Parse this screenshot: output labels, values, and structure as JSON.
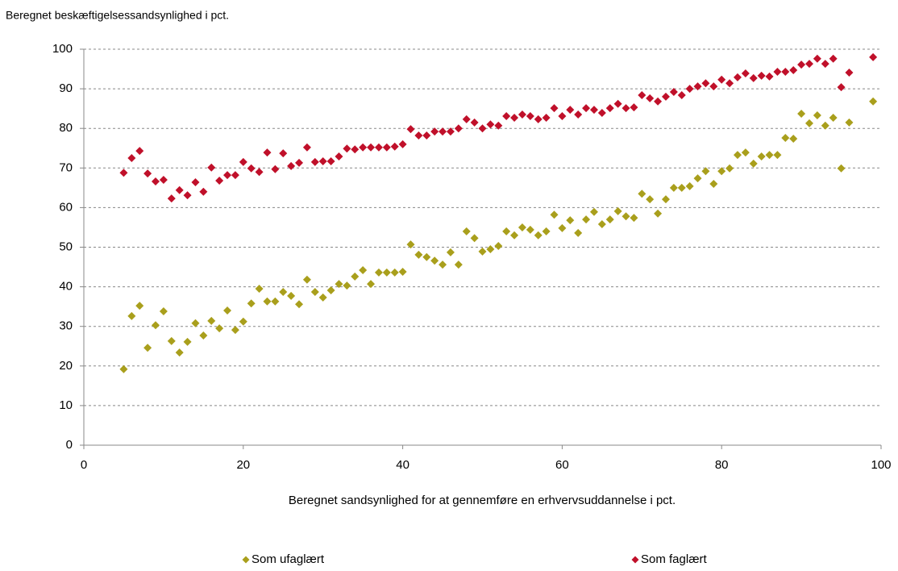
{
  "chart_data": {
    "type": "scatter",
    "title": "Beregnet beskæftigelsessandsynlighed i pct.",
    "x_label": "Beregnet sandsynlighed for at gennemføre en erhvervsuddannelse i pct.",
    "x": [
      5,
      6,
      7,
      8,
      9,
      10,
      11,
      12,
      13,
      14,
      15,
      16,
      17,
      18,
      19,
      20,
      21,
      22,
      23,
      24,
      25,
      26,
      27,
      28,
      29,
      30,
      31,
      32,
      33,
      34,
      35,
      36,
      37,
      38,
      39,
      40,
      41,
      42,
      43,
      44,
      45,
      46,
      47,
      48,
      49,
      50,
      51,
      52,
      53,
      54,
      55,
      56,
      57,
      58,
      59,
      60,
      61,
      62,
      63,
      64,
      65,
      66,
      67,
      68,
      69,
      70,
      71,
      72,
      73,
      74,
      75,
      76,
      77,
      78,
      79,
      80,
      81,
      82,
      83,
      84,
      85,
      86,
      87,
      88,
      89,
      90,
      91,
      92,
      93,
      94,
      95,
      96,
      99
    ],
    "series": [
      {
        "name": "Som ufaglært",
        "color": "#a99f1c",
        "values": [
          19.2,
          32.6,
          35.2,
          24.6,
          30.3,
          33.8,
          26.3,
          23.4,
          26.1,
          30.8,
          27.7,
          31.4,
          29.5,
          34,
          29.1,
          31.2,
          35.8,
          39.5,
          36.3,
          36.3,
          38.7,
          37.7,
          35.6,
          41.8,
          38.7,
          37.3,
          39.1,
          40.7,
          40.3,
          42.6,
          44.2,
          40.7,
          43.6,
          43.6,
          43.6,
          43.8,
          50.7,
          48.1,
          47.5,
          46.6,
          45.6,
          48.7,
          45.6,
          54,
          52.3,
          48.9,
          49.5,
          50.3,
          54,
          53,
          55,
          54.4,
          53,
          54,
          58.2,
          54.8,
          56.8,
          53.6,
          57,
          58.9,
          55.8,
          57,
          59.1,
          57.8,
          57.4,
          63.5,
          62.1,
          58.5,
          62.1,
          65,
          65,
          65.4,
          67.4,
          69.2,
          66,
          69.2,
          69.9,
          73.3,
          73.9,
          71.1,
          72.9,
          73.3,
          73.3,
          77.6,
          77.4,
          83.7,
          81.3,
          83.3,
          80.7,
          82.7,
          69.9,
          81.5,
          86.8
        ]
      },
      {
        "name": "Som faglært",
        "color": "#c0102a",
        "values": [
          68.8,
          72.5,
          74.3,
          68.6,
          66.6,
          67,
          62.3,
          64.4,
          63.1,
          66.4,
          64,
          70.1,
          66.8,
          68.2,
          68.2,
          71.5,
          69.9,
          69,
          73.9,
          69.7,
          73.7,
          70.5,
          71.3,
          75.2,
          71.5,
          71.7,
          71.7,
          72.9,
          74.9,
          74.7,
          75.2,
          75.2,
          75.2,
          75.2,
          75.4,
          76,
          79.8,
          78.2,
          78.2,
          79.2,
          79.2,
          79.2,
          80,
          82.3,
          81.5,
          80,
          81,
          80.7,
          83.1,
          82.7,
          83.5,
          83.1,
          82.3,
          82.7,
          85.1,
          83.1,
          84.7,
          83.5,
          85.1,
          84.7,
          83.9,
          85.1,
          86.2,
          85.1,
          85.3,
          88.4,
          87.6,
          86.8,
          88,
          89.2,
          88.4,
          90,
          90.6,
          91.4,
          90.6,
          92.3,
          91.4,
          92.9,
          93.9,
          92.7,
          93.3,
          93.1,
          94.3,
          94.3,
          94.7,
          96.1,
          96.3,
          97.6,
          96.3,
          97.6,
          90.4,
          94.1,
          98
        ]
      }
    ],
    "xlim": [
      0,
      100
    ],
    "xticks": [
      0,
      20,
      40,
      60,
      80,
      100
    ],
    "ylim": [
      0,
      100
    ],
    "yticks": [
      0,
      10,
      20,
      30,
      40,
      50,
      60,
      70,
      80,
      90,
      100
    ],
    "grid": true,
    "legend": "bottom"
  }
}
